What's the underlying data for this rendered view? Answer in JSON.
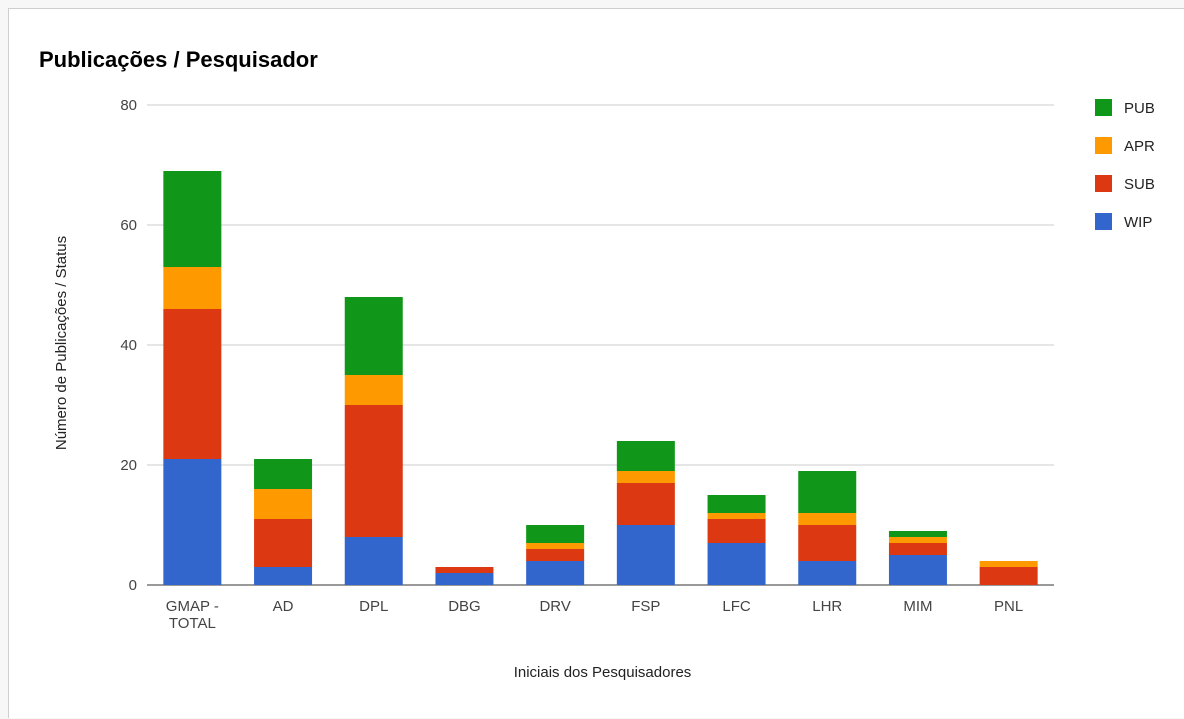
{
  "chart_data": {
    "type": "bar",
    "stacked": true,
    "title": "Publicações / Pesquisador",
    "xlabel": "Iniciais dos Pesquisadores",
    "ylabel": "Número de Publicações / Status",
    "ylim": [
      0,
      80
    ],
    "yticks": [
      "0",
      "20",
      "40",
      "60",
      "80"
    ],
    "grid": true,
    "legend_position": "right",
    "categories": [
      [
        "GMAP -",
        "TOTAL"
      ],
      [
        "AD"
      ],
      [
        "DPL"
      ],
      [
        "DBG"
      ],
      [
        "DRV"
      ],
      [
        "FSP"
      ],
      [
        "LFC"
      ],
      [
        "LHR"
      ],
      [
        "MIM"
      ],
      [
        "PNL"
      ]
    ],
    "series": [
      {
        "name": "WIP",
        "color": "#3366cc",
        "values": [
          21,
          3,
          8,
          2,
          4,
          10,
          7,
          4,
          5,
          0
        ]
      },
      {
        "name": "SUB",
        "color": "#dc3912",
        "values": [
          25,
          8,
          22,
          1,
          2,
          7,
          4,
          6,
          2,
          3
        ]
      },
      {
        "name": "APR",
        "color": "#ff9900",
        "values": [
          7,
          5,
          5,
          0,
          1,
          2,
          1,
          2,
          1,
          1
        ]
      },
      {
        "name": "PUB",
        "color": "#109618",
        "values": [
          16,
          5,
          13,
          0,
          3,
          5,
          3,
          7,
          1,
          0
        ]
      }
    ],
    "legend_order": [
      "PUB",
      "APR",
      "SUB",
      "WIP"
    ]
  }
}
